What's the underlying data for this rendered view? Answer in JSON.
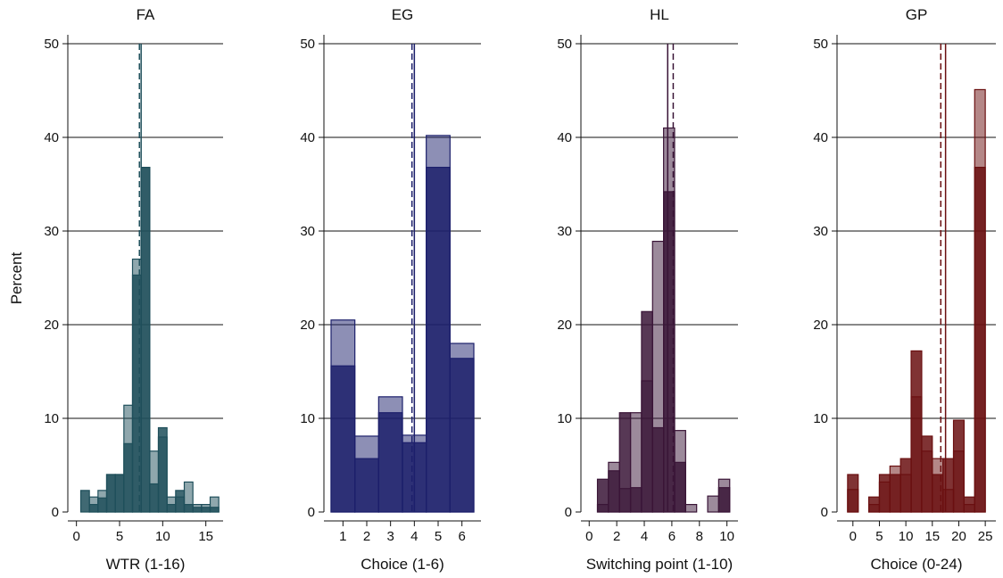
{
  "figure": {
    "ylabel": "Percent"
  },
  "chart_data": [
    {
      "type": "bar",
      "title": "FA",
      "xlabel": "WTR (1-16)",
      "ylabel": "Percent",
      "xlim": [
        -1,
        17
      ],
      "ylim": [
        0,
        50
      ],
      "xticks": [
        0,
        5,
        10,
        15
      ],
      "yticks": [
        0,
        10,
        20,
        30,
        40,
        50
      ],
      "bin_width": 1,
      "color": "#1f4f5b",
      "light_color": "#7f9ea5",
      "series": [
        {
          "x": [
            1,
            2,
            3,
            4,
            5,
            6,
            7,
            8,
            9,
            10,
            11,
            12,
            13,
            14,
            15,
            16
          ],
          "values": [
            2.3,
            0.8,
            1.5,
            4.0,
            4.0,
            7.3,
            25.3,
            36.8,
            3.0,
            9.0,
            0.8,
            2.3,
            0.8,
            0.5,
            0.5,
            0.5
          ]
        },
        {
          "x": [
            1,
            2,
            3,
            4,
            5,
            6,
            7,
            8,
            9,
            10,
            11,
            12,
            13,
            14,
            15,
            16
          ],
          "values": [
            0,
            1.6,
            2.3,
            4.0,
            4.0,
            11.4,
            27.0,
            36.8,
            6.5,
            8.0,
            1.6,
            1.6,
            3.2,
            0.8,
            0.8,
            1.6
          ]
        }
      ],
      "vlines": [
        {
          "x": 7.5,
          "style": "solid"
        },
        {
          "x": 7.3,
          "style": "dashed"
        }
      ]
    },
    {
      "type": "bar",
      "title": "EG",
      "xlabel": "Choice (1-6)",
      "ylabel": "Percent",
      "xlim": [
        0.2,
        6.8
      ],
      "ylim": [
        0,
        50
      ],
      "xticks": [
        1,
        2,
        3,
        4,
        5,
        6
      ],
      "yticks": [
        0,
        10,
        20,
        30,
        40,
        50
      ],
      "bin_width": 1,
      "color": "#1c1f6b",
      "light_color": "#8a8cbd",
      "series": [
        {
          "x": [
            1,
            2,
            3,
            4,
            5,
            6
          ],
          "values": [
            15.6,
            5.7,
            10.6,
            7.4,
            36.8,
            16.4
          ]
        },
        {
          "x": [
            1,
            2,
            3,
            4,
            5,
            6
          ],
          "values": [
            20.5,
            8.1,
            12.3,
            8.2,
            40.2,
            18.0
          ]
        }
      ],
      "vlines": [
        {
          "x": 4.0,
          "style": "solid"
        },
        {
          "x": 3.9,
          "style": "dashed"
        }
      ]
    },
    {
      "type": "bar",
      "title": "HL",
      "xlabel": "Switching point (1-10)",
      "ylabel": "Percent",
      "xlim": [
        -0.6,
        10.8
      ],
      "ylim": [
        0,
        50
      ],
      "xticks": [
        0,
        2,
        4,
        6,
        8,
        10
      ],
      "yticks": [
        0,
        10,
        20,
        30,
        40,
        50
      ],
      "bin_width": 0.8,
      "color": "#3a1537",
      "light_color": "#9a7b97",
      "series": [
        {
          "x": [
            1,
            1.8,
            2.6,
            3.4,
            4.2,
            5.0,
            5.8,
            6.6,
            7.4,
            8.2,
            9.0,
            9.8
          ],
          "values": [
            3.5,
            4.4,
            10.6,
            2.6,
            21.4,
            9.0,
            34.2,
            5.3,
            0,
            0,
            0,
            2.6
          ]
        },
        {
          "x": [
            1,
            1.8,
            2.6,
            3.4,
            4.2,
            5.0,
            5.8,
            6.6,
            7.4,
            8.2,
            9.0,
            9.8
          ],
          "values": [
            0.8,
            5.3,
            2.5,
            10.6,
            14.0,
            28.9,
            41.0,
            8.7,
            0.8,
            0,
            1.7,
            3.5
          ]
        }
      ],
      "vlines": [
        {
          "x": 5.7,
          "style": "solid"
        },
        {
          "x": 6.1,
          "style": "dashed"
        }
      ]
    },
    {
      "type": "bar",
      "title": "GP",
      "xlabel": "Choice (0-24)",
      "ylabel": "Percent",
      "xlim": [
        -3,
        27
      ],
      "ylim": [
        0,
        50
      ],
      "xticks": [
        0,
        5,
        10,
        15,
        20,
        25
      ],
      "yticks": [
        0,
        10,
        20,
        30,
        40,
        50
      ],
      "bin_width": 2,
      "color": "#6a0f10",
      "light_color": "#b07c7d",
      "series": [
        {
          "x": [
            0,
            2,
            4,
            6,
            8,
            10,
            12,
            14,
            16,
            18,
            20,
            22,
            24
          ],
          "values": [
            4.0,
            0,
            1.6,
            4.0,
            4.0,
            5.7,
            17.2,
            8.1,
            4.0,
            5.7,
            9.8,
            1.6,
            36.8
          ]
        },
        {
          "x": [
            0,
            2,
            4,
            6,
            8,
            10,
            12,
            14,
            16,
            18,
            20,
            22,
            24
          ],
          "values": [
            2.4,
            0,
            0.8,
            3.2,
            4.9,
            4.0,
            12.3,
            6.5,
            5.7,
            2.4,
            6.5,
            0.8,
            45.1
          ]
        }
      ],
      "vlines": [
        {
          "x": 17.5,
          "style": "solid"
        },
        {
          "x": 16.6,
          "style": "dashed"
        }
      ]
    }
  ]
}
